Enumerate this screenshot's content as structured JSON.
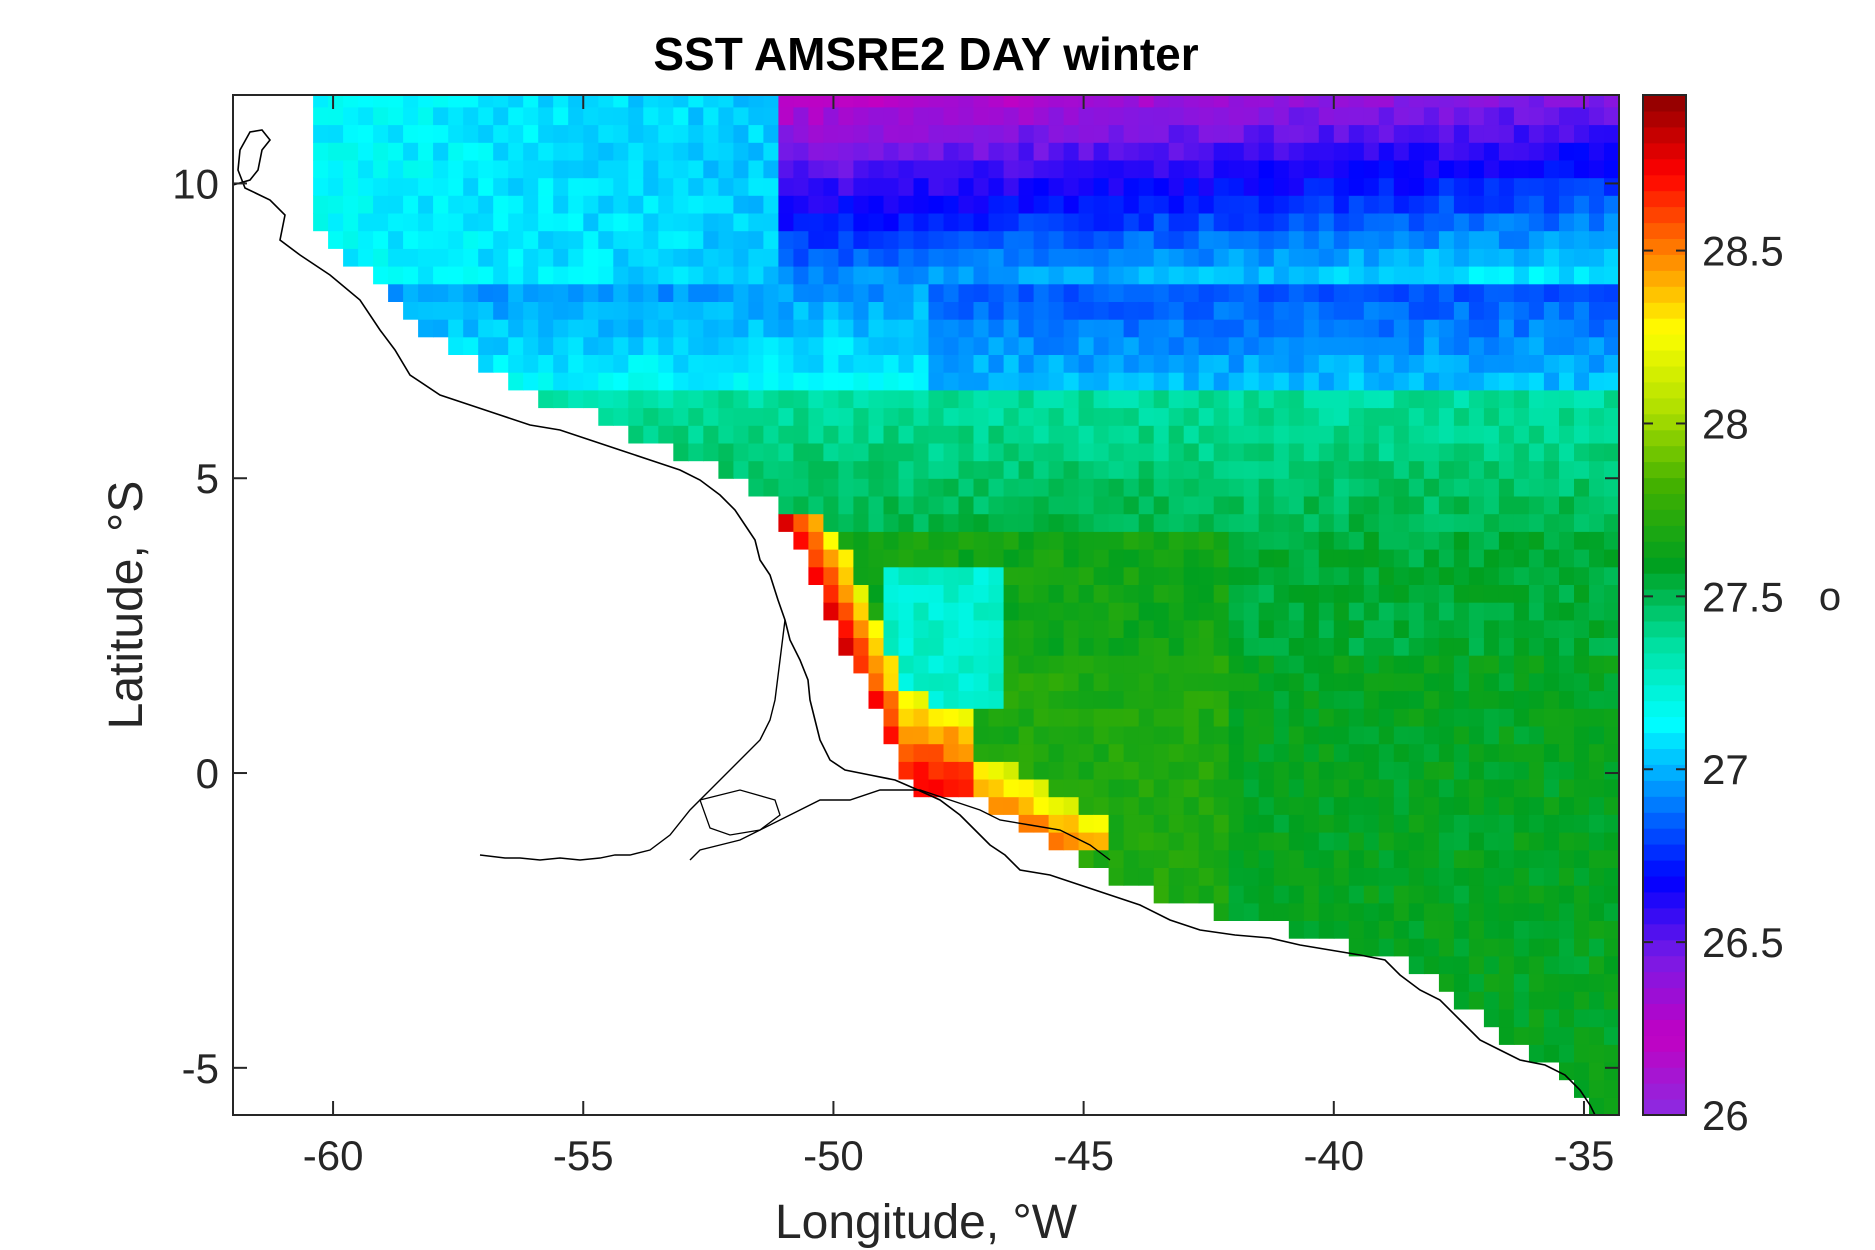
{
  "title": "SST AMSRE2 DAY winter",
  "xlabel": "Longitude, °W",
  "ylabel": "Latitude, °S",
  "colorbar_unit": "o",
  "chart_data": {
    "type": "heatmap",
    "title": "SST AMSRE2 DAY winter",
    "xlabel": "Longitude, °W",
    "ylabel": "Latitude, °S",
    "xlim": [
      -62,
      -34.3
    ],
    "ylim": [
      -5.8,
      11.5
    ],
    "xticks": [
      -60,
      -55,
      -50,
      -45,
      -40,
      -35
    ],
    "xtick_labels": [
      "-60",
      "-55",
      "-50",
      "-45",
      "-40",
      "-35"
    ],
    "yticks": [
      -5,
      0,
      5,
      10
    ],
    "ytick_labels": [
      "-5",
      "0",
      "5",
      "10"
    ],
    "colorbar": {
      "colormap": "jet-like (purple-blue-cyan-green-yellow-red)",
      "range": [
        26,
        28.95
      ],
      "ticks": [
        26,
        26.5,
        27,
        27.5,
        28,
        28.5
      ],
      "tick_labels": [
        "26",
        "26.5",
        "27",
        "27.5",
        "28",
        "28.5"
      ],
      "unit_label": "o"
    },
    "colormap_stops": [
      "#8a2be2",
      "#c200c2",
      "#7a1ae6",
      "#0000ff",
      "#0080ff",
      "#00ffff",
      "#00e0a0",
      "#00a020",
      "#40b000",
      "#b0e000",
      "#ffff00",
      "#ff8000",
      "#ff0000",
      "#8b0000"
    ],
    "regions": [
      {
        "name": "north open ocean (purple)",
        "value": 26.4
      },
      {
        "name": "northern band (blue)",
        "value": 26.9
      },
      {
        "name": "central band (cyan)",
        "value": 27.3
      },
      {
        "name": "southern ocean (green)",
        "value": 27.7
      },
      {
        "name": "Amazon plume shelf (red)",
        "value": 28.8
      }
    ]
  }
}
